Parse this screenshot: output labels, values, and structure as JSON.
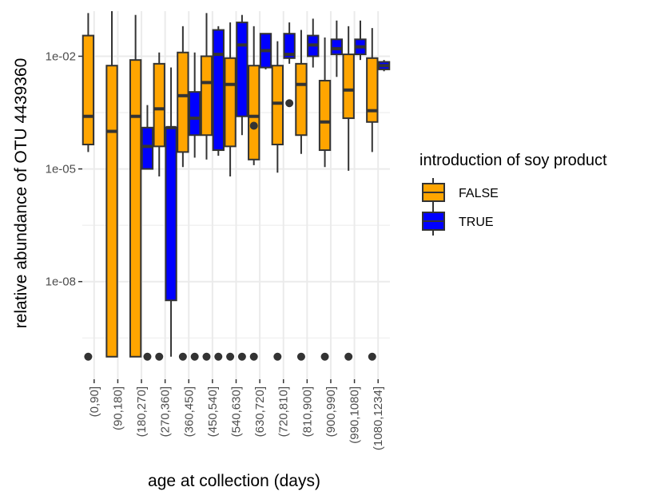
{
  "chart_data": {
    "type": "box",
    "xlabel": "age at collection (days)",
    "ylabel": "relative abundance of OTU 4439360",
    "yscale": "log10",
    "ylim_log10": [
      -10.6,
      -0.8
    ],
    "yticks": [
      {
        "log10": -2,
        "label": "1e-02"
      },
      {
        "log10": -5,
        "label": "1e-05"
      },
      {
        "log10": -8,
        "label": "1e-08"
      }
    ],
    "categories": [
      "(0,90]",
      "(90,180]",
      "(180,270]",
      "(270,360]",
      "(360,450]",
      "(450,540]",
      "(540,630]",
      "(630,720]",
      "(720,810]",
      "(810,900]",
      "(900,990]",
      "(990,1080]",
      "(1080,1234]"
    ],
    "zero_row_log10": -10,
    "legend": {
      "title": "introduction of soy product",
      "position": "right",
      "entries": [
        {
          "label": "FALSE",
          "color": "#FFA500"
        },
        {
          "label": "TRUE",
          "color": "#0000FF"
        }
      ]
    },
    "grid": true,
    "background": "#FFFFFF",
    "grid_color": "#EBEBEB",
    "series": [
      {
        "name": "FALSE",
        "color": "#FFA500",
        "boxes": [
          {
            "category": "(0,90]",
            "whisker_low": -4.55,
            "q1": -4.35,
            "median": -3.6,
            "q3": -1.45,
            "whisker_high": -0.85,
            "outliers": [
              -10
            ]
          },
          {
            "category": "(90,180]",
            "whisker_low": -10,
            "q1": -10,
            "median": -4.0,
            "q3": -2.25,
            "whisker_high": -0.8,
            "outliers": []
          },
          {
            "category": "(180,270]",
            "whisker_low": -10,
            "q1": -10,
            "median": -3.6,
            "q3": -2.1,
            "whisker_high": -0.9,
            "outliers": []
          },
          {
            "category": "(270,360]",
            "whisker_low": -5.2,
            "q1": -4.4,
            "median": -3.4,
            "q3": -2.2,
            "whisker_high": -1.9,
            "outliers": [
              -10
            ]
          },
          {
            "category": "(360,450]",
            "whisker_low": -4.95,
            "q1": -4.55,
            "median": -3.05,
            "q3": -1.9,
            "whisker_high": -1.2,
            "outliers": [
              -10
            ]
          },
          {
            "category": "(450,540]",
            "whisker_low": -4.75,
            "q1": -4.1,
            "median": -2.7,
            "q3": -2.0,
            "whisker_high": -0.85,
            "outliers": [
              -10
            ]
          },
          {
            "category": "(540,630]",
            "whisker_low": -5.2,
            "q1": -4.4,
            "median": -2.75,
            "q3": -2.05,
            "whisker_high": -1.1,
            "outliers": [
              -10
            ]
          },
          {
            "category": "(630,720]",
            "whisker_low": -4.9,
            "q1": -4.75,
            "median": -3.6,
            "q3": -2.25,
            "whisker_high": -1.2,
            "outliers": [
              -10,
              -3.85
            ]
          },
          {
            "category": "(720,810]",
            "whisker_low": -5.1,
            "q1": -4.35,
            "median": -3.25,
            "q3": -2.25,
            "whisker_high": -1.6,
            "outliers": [
              -10
            ]
          },
          {
            "category": "(810,900]",
            "whisker_low": -4.6,
            "q1": -4.1,
            "median": -2.75,
            "q3": -2.2,
            "whisker_high": -1.3,
            "outliers": [
              -10
            ]
          },
          {
            "category": "(900,990]",
            "whisker_low": -4.95,
            "q1": -4.5,
            "median": -3.75,
            "q3": -2.65,
            "whisker_high": -1.5,
            "outliers": [
              -10
            ]
          },
          {
            "category": "(990,1080]",
            "whisker_low": -5.05,
            "q1": -3.65,
            "median": -2.9,
            "q3": -1.95,
            "whisker_high": -1.2,
            "outliers": [
              -10
            ]
          },
          {
            "category": "(1080,1234]",
            "whisker_low": -4.55,
            "q1": -3.75,
            "median": -3.45,
            "q3": -2.05,
            "whisker_high": -1.25,
            "outliers": [
              -10
            ]
          }
        ]
      },
      {
        "name": "TRUE",
        "color": "#0000FF",
        "boxes": [
          {
            "category": "(180,270]",
            "whisker_low": -5.0,
            "q1": -5.0,
            "median": -4.4,
            "q3": -3.9,
            "whisker_high": -3.3,
            "outliers": [
              -10
            ]
          },
          {
            "category": "(270,360]",
            "whisker_low": -10,
            "q1": -8.5,
            "median": -3.9,
            "q3": -3.9,
            "whisker_high": -2.3,
            "outliers": []
          },
          {
            "category": "(360,450]",
            "whisker_low": -4.7,
            "q1": -4.1,
            "median": -3.65,
            "q3": -2.95,
            "whisker_high": -1.9,
            "outliers": [
              -10
            ]
          },
          {
            "category": "(450,540]",
            "whisker_low": -4.65,
            "q1": -4.5,
            "median": -1.95,
            "q3": -1.3,
            "whisker_high": -1.2,
            "outliers": [
              -10
            ]
          },
          {
            "category": "(540,630]",
            "whisker_low": -4.1,
            "q1": -3.6,
            "median": -1.7,
            "q3": -1.1,
            "whisker_high": -0.9,
            "outliers": [
              -10
            ]
          },
          {
            "category": "(630,720]",
            "whisker_low": -2.35,
            "q1": -2.3,
            "median": -1.85,
            "q3": -1.4,
            "whisker_high": -1.4,
            "outliers": []
          },
          {
            "category": "(720,810]",
            "whisker_low": -2.2,
            "q1": -2.05,
            "median": -1.95,
            "q3": -1.4,
            "whisker_high": -1.1,
            "outliers": [
              -3.25
            ]
          },
          {
            "category": "(810,900]",
            "whisker_low": -2.3,
            "q1": -2.0,
            "median": -1.7,
            "q3": -1.45,
            "whisker_high": -1.0,
            "outliers": []
          },
          {
            "category": "(900,990]",
            "whisker_low": -2.55,
            "q1": -1.95,
            "median": -1.8,
            "q3": -1.55,
            "whisker_high": -1.05,
            "outliers": []
          },
          {
            "category": "(990,1080]",
            "whisker_low": -2.1,
            "q1": -1.95,
            "median": -1.75,
            "q3": -1.55,
            "whisker_high": -1.05,
            "outliers": []
          },
          {
            "category": "(1080,1234]",
            "whisker_low": -2.4,
            "q1": -2.35,
            "median": -2.25,
            "q3": -2.15,
            "whisker_high": -2.1,
            "outliers": []
          }
        ]
      }
    ]
  }
}
